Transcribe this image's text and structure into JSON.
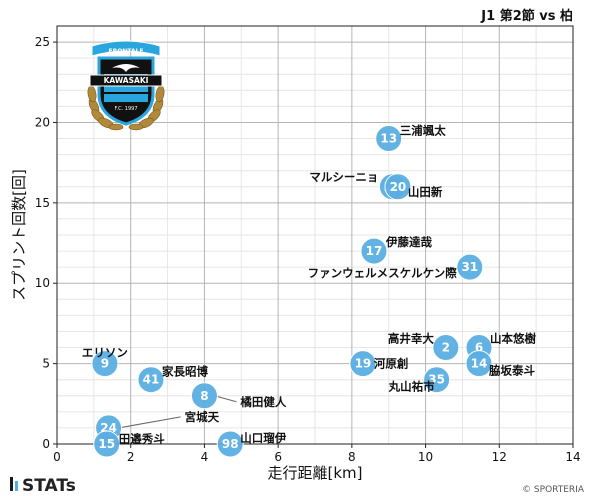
{
  "header": {
    "match_label": "J1 第2節 vs 柏"
  },
  "footer": {
    "brand": "STATs",
    "copyright": "© SPORTERIA"
  },
  "logo": {
    "banner_top": "FRONTALE",
    "banner_mid": "KAWASAKI",
    "banner_small": "F.C. 1997",
    "colors": {
      "blue": "#2aa6df",
      "black": "#111111",
      "gold": "#b08a3a"
    }
  },
  "chart_data": {
    "type": "scatter",
    "title": "",
    "xlabel": "走行距離[km]",
    "ylabel": "スプリント回数[回]",
    "xlim": [
      0,
      14
    ],
    "ylim": [
      0,
      26
    ],
    "xticks": [
      0,
      2,
      4,
      6,
      8,
      10,
      12,
      14
    ],
    "yticks": [
      0,
      5,
      10,
      15,
      20,
      25
    ],
    "grid": true,
    "marker_color": "#5aaee3",
    "points": [
      {
        "number": "13",
        "name": "三浦颯太",
        "x": 9.0,
        "y": 19.0
      },
      {
        "number": "22",
        "name": "マルシーニョ",
        "x": 9.1,
        "y": 16.0
      },
      {
        "number": "20",
        "name": "山田新",
        "x": 9.25,
        "y": 16.0
      },
      {
        "number": "17",
        "name": "伊藤達哉",
        "x": 8.6,
        "y": 12.0
      },
      {
        "number": "31",
        "name": "ファンウェルメスケルケン際",
        "x": 11.2,
        "y": 11.0
      },
      {
        "number": "2",
        "name": "高井幸大",
        "x": 10.55,
        "y": 6.0
      },
      {
        "number": "6",
        "name": "山本悠樹",
        "x": 11.45,
        "y": 6.0
      },
      {
        "number": "14",
        "name": "脇坂泰斗",
        "x": 11.45,
        "y": 5.0
      },
      {
        "number": "19",
        "name": "河原創",
        "x": 8.3,
        "y": 5.0
      },
      {
        "number": "35",
        "name": "丸山祐市",
        "x": 10.3,
        "y": 4.0
      },
      {
        "number": "9",
        "name": "エリソン",
        "x": 1.3,
        "y": 5.0
      },
      {
        "number": "41",
        "name": "家長昭博",
        "x": 2.55,
        "y": 4.0
      },
      {
        "number": "8",
        "name": "橘田健人",
        "x": 4.0,
        "y": 3.0
      },
      {
        "number": "24",
        "name": "宮城天",
        "x": 1.4,
        "y": 1.0
      },
      {
        "number": "15",
        "name": "田邉秀斗",
        "x": 1.35,
        "y": 0.0
      },
      {
        "number": "98",
        "name": "山口瑠伊",
        "x": 4.7,
        "y": 0.0
      }
    ]
  }
}
